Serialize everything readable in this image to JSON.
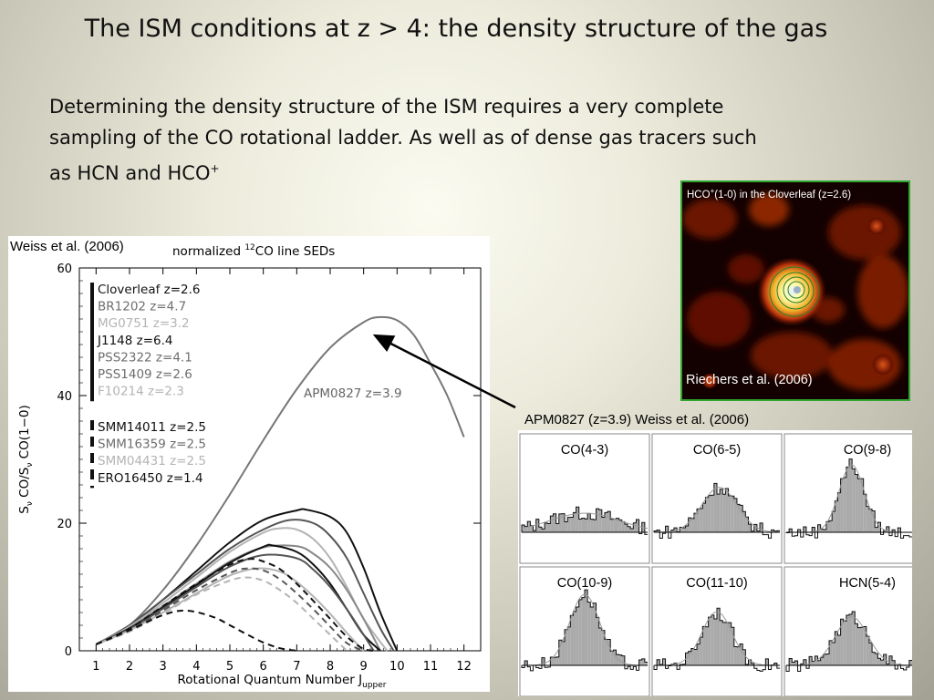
{
  "slide": {
    "title": "The ISM conditions at z > 4: the density structure of the gas",
    "paragraph_line1": "Determining the density structure of the ISM requires a very complete",
    "paragraph_line2": "sampling of the CO rotational ladder. As well as of dense gas tracers such",
    "paragraph_line3_main": "as HCN and HCO",
    "paragraph_line3_sup": "+"
  },
  "left_figure": {
    "caption": "Weiss et al. (2006)",
    "plot_title": "normalized ",
    "plot_title_sup": "12",
    "plot_title_end": "CO line SEDs",
    "ylabel": "S",
    "ylabel_rest": " CO/S",
    "ylabel_end": " CO(1−0)",
    "ylabel_sub": "ν",
    "xlabel": "Rotational Quantum Number J",
    "xlabel_sub": "upper",
    "curve_label": "APM0827 z=3.9",
    "x_ticks": [
      "1",
      "2",
      "3",
      "4",
      "5",
      "6",
      "7",
      "8",
      "9",
      "10",
      "11",
      "12"
    ],
    "y_ticks": [
      "0",
      "20",
      "40",
      "60"
    ]
  },
  "chart_data": {
    "type": "line",
    "xlim": [
      0.5,
      12.5
    ],
    "ylim": [
      0,
      60
    ],
    "legend_groups": [
      [
        {
          "name": "Cloverleaf z=2.6",
          "color": "#111111"
        },
        {
          "name": "BR1202 z=4.7",
          "color": "#6e6e6e"
        },
        {
          "name": "MG0751 z=3.2",
          "color": "#b4b4b4"
        },
        {
          "name": "J1148 z=6.4",
          "color": "#111111"
        },
        {
          "name": "PSS2322 z=4.1",
          "color": "#6e6e6e"
        },
        {
          "name": "PSS1409 z=2.6",
          "color": "#6e6e6e"
        },
        {
          "name": "F10214 z=2.3",
          "color": "#b4b4b4"
        }
      ],
      [
        {
          "name": "SMM14011 z=2.5",
          "color": "#111111"
        },
        {
          "name": "SMM16359 z=2.5",
          "color": "#6e6e6e"
        },
        {
          "name": "SMM04431 z=2.5",
          "color": "#b4b4b4"
        },
        {
          "name": "ERO16450 z=1.4",
          "color": "#111111"
        }
      ]
    ],
    "series": [
      {
        "name": "APM0827 z=3.9",
        "color": "#777777",
        "dash": false,
        "x": [
          1,
          2,
          3,
          4,
          5,
          6,
          7,
          8,
          9,
          9.5,
          10,
          10.5,
          11,
          11.5,
          12
        ],
        "y": [
          1,
          4,
          9.5,
          16.5,
          24.5,
          33,
          41,
          47.5,
          51.5,
          52.3,
          51.8,
          49.5,
          45,
          40,
          33.5
        ]
      },
      {
        "name": "",
        "color": "#111111",
        "dash": false,
        "x": [
          1,
          2,
          3,
          4,
          5,
          6,
          7,
          7.3,
          8,
          8.5,
          9,
          9.5,
          10
        ],
        "y": [
          1,
          4,
          8,
          12.5,
          17,
          20.5,
          22,
          22.1,
          21,
          18.5,
          13,
          6,
          0
        ]
      },
      {
        "name": "",
        "color": "#555555",
        "dash": false,
        "x": [
          1,
          2,
          3,
          4,
          5,
          6,
          6.8,
          7.5,
          8,
          8.5,
          9,
          9.5,
          9.9
        ],
        "y": [
          1,
          4,
          8,
          12,
          16,
          19,
          20.5,
          20,
          18,
          14.5,
          9,
          3.5,
          0
        ]
      },
      {
        "name": "",
        "color": "#b4b4b4",
        "dash": false,
        "x": [
          1,
          2,
          3,
          4,
          5,
          6,
          6.5,
          7,
          7.5,
          8,
          8.5,
          9,
          9.7
        ],
        "y": [
          1,
          3.8,
          7.5,
          11.5,
          15.5,
          18.5,
          19.2,
          19,
          17.5,
          14.5,
          10,
          5,
          0
        ]
      },
      {
        "name": "",
        "color": "#888888",
        "dash": false,
        "x": [
          1,
          2,
          3,
          4,
          5,
          6,
          7,
          7.5,
          8,
          8.5,
          9,
          9.5
        ],
        "y": [
          1,
          3.6,
          7,
          10.5,
          14,
          16.2,
          16.4,
          15.2,
          13,
          9.5,
          5,
          0
        ]
      },
      {
        "name": "",
        "color": "#111111",
        "dash": false,
        "x": [
          1,
          2,
          3,
          4,
          5,
          6,
          6.3,
          7,
          7.5,
          8,
          8.5,
          9,
          9.5
        ],
        "y": [
          1,
          3.5,
          6.8,
          10.3,
          13.8,
          16.3,
          16.5,
          15.5,
          13.5,
          10.5,
          6.5,
          2.5,
          0
        ]
      },
      {
        "name": "",
        "color": "#555555",
        "dash": false,
        "x": [
          1,
          2,
          3,
          4,
          5,
          6,
          7,
          7.5,
          8,
          8.5,
          9,
          9.3
        ],
        "y": [
          1,
          3.4,
          6.6,
          10,
          13.2,
          15,
          14.5,
          12.7,
          10,
          6.5,
          2.5,
          0
        ]
      },
      {
        "name": "",
        "color": "#b4b4b4",
        "dash": false,
        "x": [
          1,
          2,
          3,
          4,
          5,
          5.8,
          6.5,
          7,
          7.5,
          8,
          8.5,
          9
        ],
        "y": [
          1,
          3.2,
          6,
          9,
          11.8,
          12.9,
          12.4,
          10.8,
          8.5,
          5.8,
          2.8,
          0
        ]
      },
      {
        "name": "",
        "color": "#111111",
        "dash": true,
        "x": [
          1,
          2,
          3,
          4,
          5,
          5.6,
          6,
          6.5,
          7,
          7.5,
          8,
          8.5,
          9,
          9.4
        ],
        "y": [
          1,
          3.5,
          7,
          10.5,
          13.5,
          14.4,
          14,
          12.8,
          10.5,
          7.8,
          5,
          2.2,
          0.3,
          0
        ]
      },
      {
        "name": "",
        "color": "#555555",
        "dash": true,
        "x": [
          1,
          2,
          3,
          4,
          5,
          5.5,
          6,
          6.5,
          7,
          7.5,
          8,
          8.5,
          9
        ],
        "y": [
          1,
          3.2,
          6.3,
          9.5,
          12.2,
          12.9,
          12.6,
          11.2,
          9,
          6.5,
          3.8,
          1.2,
          0
        ]
      },
      {
        "name": "",
        "color": "#b4b4b4",
        "dash": true,
        "x": [
          1,
          2,
          3,
          4,
          5,
          5.5,
          6,
          6.5,
          7,
          7.5,
          8,
          8.5
        ],
        "y": [
          1,
          3,
          5.8,
          8.8,
          11,
          11.5,
          11,
          9.5,
          7.5,
          5,
          2.5,
          0
        ]
      },
      {
        "name": "",
        "color": "#111111",
        "dash": true,
        "x": [
          1,
          2,
          3,
          3.7,
          4.5,
          5,
          5.5,
          6,
          6.5,
          7
        ],
        "y": [
          1,
          3.2,
          5.6,
          6.3,
          5.3,
          4,
          2.6,
          1.3,
          0.4,
          0
        ]
      }
    ]
  },
  "arrow": {
    "from_x": 565,
    "from_y": 447,
    "to_x": 411,
    "to_y": 368
  },
  "hco_map": {
    "label_main": "HCO",
    "label_sup": "+",
    "label_rest": "(1-0) in the Cloverleaf (z=2.6)",
    "credit": "Riechers et al. (2006)",
    "frame_color": "#2fa62f"
  },
  "spectra_panel": {
    "caption": "APM0827 (z=3.9) Weiss et al. (2006)",
    "cells": [
      {
        "label": "CO(4-3)",
        "amp": 0.22,
        "width": 0.28,
        "center": 0.5
      },
      {
        "label": "CO(6-5)",
        "amp": 0.52,
        "width": 0.14,
        "center": 0.52
      },
      {
        "label": "CO(9-8)",
        "amp": 0.78,
        "width": 0.1,
        "center": 0.52
      },
      {
        "label": "CO(10-9)",
        "amp": 0.82,
        "width": 0.12,
        "center": 0.5
      },
      {
        "label": "CO(11-10)",
        "amp": 0.62,
        "width": 0.12,
        "center": 0.5
      },
      {
        "label": "HCN(5-4)",
        "amp": 0.56,
        "width": 0.13,
        "center": 0.52
      }
    ]
  }
}
